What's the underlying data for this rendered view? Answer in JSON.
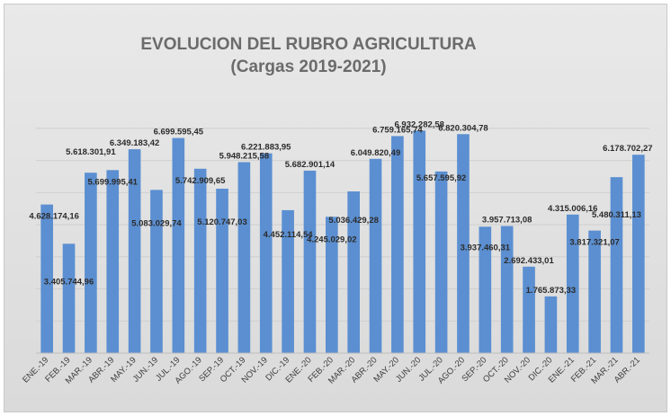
{
  "chart_data": {
    "type": "bar",
    "title": "EVOLUCION DEL RUBRO AGRICULTURA",
    "subtitle": "(Cargas 2019-2021)",
    "xlabel": "",
    "ylabel": "",
    "ylim": [
      0,
      7500000
    ],
    "grid": true,
    "bar_color": "#5b8fd1",
    "categories": [
      "ENE.-19",
      "FEB.-19",
      "MAR.-19",
      "ABR.-19",
      "MAY.-19",
      "JUN.-19",
      "JUL.-19",
      "AGO.-19",
      "SEP.-19",
      "OCT.-19",
      "NOV.-19",
      "DIC.-19",
      "ENE.-20",
      "FEB.-20",
      "MAR.-20",
      "ABR.-20",
      "MAY.-20",
      "JUN.-20",
      "JUL.-20",
      "AGO.-20",
      "SEP.-20",
      "OCT.-20",
      "NOV.-20",
      "DIC.-20",
      "ENE.-21",
      "FEB.-21",
      "MAR.-21",
      "ABR.-21"
    ],
    "values": [
      4628174.16,
      3405744.96,
      5618301.91,
      5699995.41,
      6349183.42,
      5083029.74,
      6699595.45,
      5742909.65,
      5120747.03,
      5948215.58,
      6221883.95,
      4452114.54,
      5682901.14,
      4245029.02,
      5036429.28,
      6049820.49,
      6759165.74,
      6932282.58,
      5657595.92,
      6820304.78,
      3937460.31,
      3957713.08,
      2692433.01,
      1765873.33,
      4315006.16,
      3817321.07,
      5480311.13,
      6178702.27
    ],
    "value_labels": [
      "4.628.174,16",
      "3.405.744,96",
      "5.618.301,91",
      "5.699.995,41",
      "6.349.183,42",
      "5.083.029,74",
      "6.699.595,45",
      "5.742.909,65",
      "5.120.747,03",
      "5.948.215,58",
      "6.221.883,95",
      "4.452.114,54",
      "5.682.901,14",
      "4.245.029,02",
      "5.036.429,28",
      "6.049.820,49",
      "6.759.165,74",
      "6.932.282,58",
      "5.657.595,92",
      "6.820.304,78",
      "3.937.460,31",
      "3.957.713,08",
      "2.692.433,01",
      "1.765.873,33",
      "4.315.006,16",
      "3.817.321,07",
      "5.480.311,13",
      "6.178.702,27"
    ]
  }
}
